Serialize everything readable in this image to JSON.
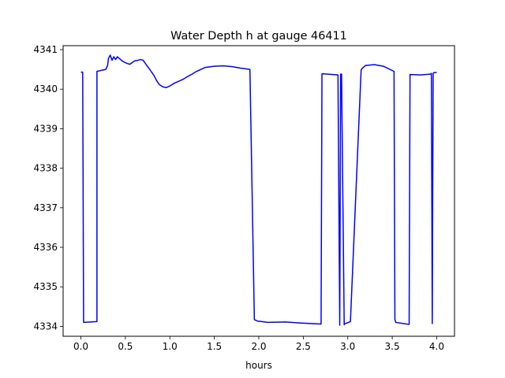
{
  "chart_data": {
    "type": "line",
    "title": "Water Depth h at gauge 46411",
    "xlabel": "hours",
    "ylabel": "",
    "xlim": [
      -0.2,
      4.2
    ],
    "ylim": [
      4333.75,
      4341.1
    ],
    "xticks": [
      0.0,
      0.5,
      1.0,
      1.5,
      2.0,
      2.5,
      3.0,
      3.5,
      4.0
    ],
    "xtick_labels": [
      "0.0",
      "0.5",
      "1.0",
      "1.5",
      "2.0",
      "2.5",
      "3.0",
      "3.5",
      "4.0"
    ],
    "yticks": [
      4334,
      4335,
      4336,
      4337,
      4338,
      4339,
      4340,
      4341
    ],
    "ytick_labels": [
      "4334",
      "4335",
      "4336",
      "4337",
      "4338",
      "4339",
      "4340",
      "4341"
    ],
    "grid": false,
    "line_color": "#0000ff",
    "series": [
      {
        "x": [
          0.0,
          0.02,
          0.03,
          0.18,
          0.18,
          0.28,
          0.3,
          0.31,
          0.33,
          0.35,
          0.37,
          0.39,
          0.41,
          0.43,
          0.46,
          0.49,
          0.52,
          0.55,
          0.58,
          0.61,
          0.64,
          0.67,
          0.7,
          0.74,
          0.78,
          0.82,
          0.85,
          0.88,
          0.92,
          0.96,
          1.0,
          1.05,
          1.1,
          1.15,
          1.2,
          1.25,
          1.3,
          1.4,
          1.5,
          1.6,
          1.7,
          1.8,
          1.9,
          1.95,
          1.98,
          1.99,
          2.0,
          2.1,
          2.3,
          2.5,
          2.7,
          2.71,
          2.89,
          2.91,
          2.92,
          2.93,
          2.96,
          2.96,
          3.03,
          3.15,
          3.16,
          3.2,
          3.3,
          3.4,
          3.52,
          3.53,
          3.54,
          3.69,
          3.7,
          3.82,
          3.93,
          3.94,
          3.95,
          3.96,
          3.97,
          4.0
        ],
        "y": [
          4340.43,
          4340.43,
          4334.1,
          4334.12,
          4340.45,
          4340.5,
          4340.6,
          4340.78,
          4340.86,
          4340.73,
          4340.82,
          4340.75,
          4340.82,
          4340.78,
          4340.72,
          4340.68,
          4340.65,
          4340.63,
          4340.68,
          4340.72,
          4340.73,
          4340.75,
          4340.73,
          4340.6,
          4340.48,
          4340.35,
          4340.22,
          4340.12,
          4340.06,
          4340.04,
          4340.08,
          4340.15,
          4340.2,
          4340.25,
          4340.32,
          4340.38,
          4340.45,
          4340.55,
          4340.58,
          4340.59,
          4340.57,
          4340.53,
          4340.5,
          4334.17,
          4334.14,
          4334.13,
          4334.13,
          4334.1,
          4334.11,
          4334.08,
          4334.06,
          4340.39,
          4340.36,
          4334.03,
          4340.38,
          4340.38,
          4334.04,
          4334.06,
          4334.12,
          4340.48,
          4340.52,
          4340.6,
          4340.62,
          4340.58,
          4340.45,
          4334.18,
          4334.1,
          4334.05,
          4340.37,
          4340.36,
          4340.38,
          4340.4,
          4334.07,
          4340.4,
          4340.42,
          4340.42
        ]
      }
    ]
  }
}
